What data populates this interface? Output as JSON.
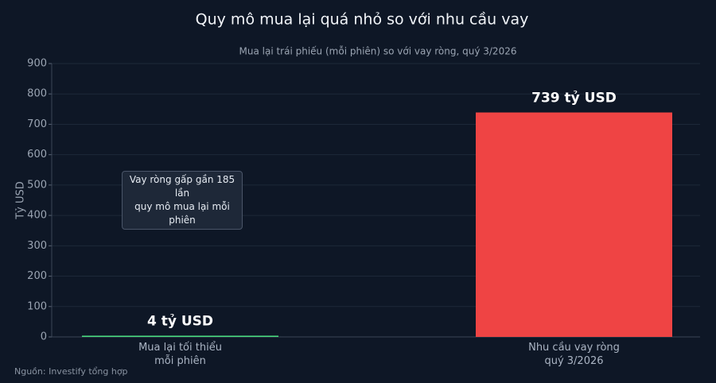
{
  "chart_data": {
    "type": "bar",
    "title": "Quy mô mua lại quá nhỏ so với nhu cầu vay",
    "subtitle": "Mua lại trái phiếu (mỗi phiên) so với vay ròng, quý 3/2026",
    "y_label": "Tỷ USD",
    "categories": [
      "Mua lại tối thiểu\nmỗi phiên",
      "Nhu cầu vay ròng\nquý 3/2026"
    ],
    "values": [
      4,
      739
    ],
    "value_labels": [
      "4 tỷ USD",
      "739 tỷ USD"
    ],
    "colors": [
      "#4ade80",
      "#ef4444"
    ],
    "ylim": [
      0,
      900
    ],
    "yticks": [
      0,
      100,
      200,
      300,
      400,
      500,
      600,
      700,
      800,
      900
    ],
    "grid": true,
    "annotation": "Vay ròng gấp gần 185 lần\nquy mô mua lại mỗi phiên",
    "source": "Nguồn: Investify tổng hợp"
  }
}
